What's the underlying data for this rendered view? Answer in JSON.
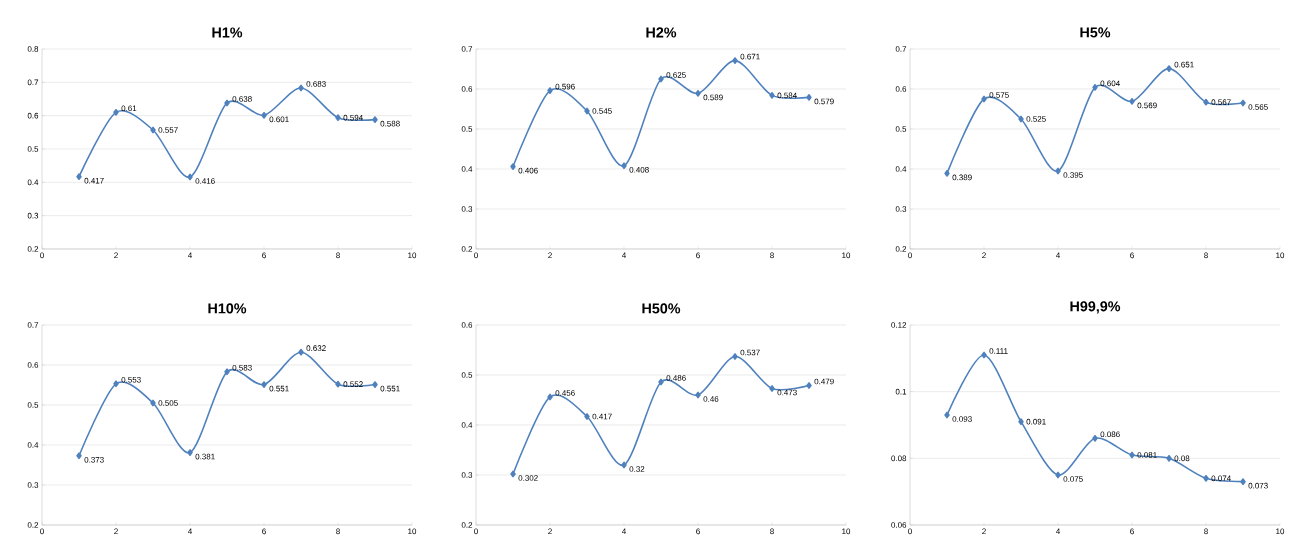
{
  "chart_data": [
    {
      "type": "line",
      "title": "H1%",
      "x": [
        1,
        2,
        3,
        4,
        5,
        6,
        7,
        8,
        9
      ],
      "color": "#4f81bd",
      "marker": "diamond",
      "grid": "y",
      "data_labels": true,
      "xlim": [
        0,
        10
      ],
      "xticks": [
        0,
        2,
        4,
        6,
        8,
        10
      ],
      "ylim": [
        0.2,
        0.8
      ],
      "yticks": [
        0.2,
        0.3,
        0.4,
        0.5,
        0.6,
        0.7,
        0.8
      ],
      "values": [
        0.417,
        0.61,
        0.557,
        0.416,
        0.638,
        0.601,
        0.683,
        0.594,
        0.588
      ]
    },
    {
      "type": "line",
      "title": "H2%",
      "x": [
        1,
        2,
        3,
        4,
        5,
        6,
        7,
        8,
        9
      ],
      "color": "#4f81bd",
      "marker": "diamond",
      "grid": "y",
      "data_labels": true,
      "xlim": [
        0,
        10
      ],
      "xticks": [
        0,
        2,
        4,
        6,
        8,
        10
      ],
      "ylim": [
        0.2,
        0.7
      ],
      "yticks": [
        0.2,
        0.3,
        0.4,
        0.5,
        0.6,
        0.7
      ],
      "values": [
        0.406,
        0.596,
        0.545,
        0.408,
        0.625,
        0.589,
        0.671,
        0.584,
        0.579
      ]
    },
    {
      "type": "line",
      "title": "H5%",
      "x": [
        1,
        2,
        3,
        4,
        5,
        6,
        7,
        8,
        9
      ],
      "color": "#4f81bd",
      "marker": "diamond",
      "grid": "y",
      "data_labels": true,
      "xlim": [
        0,
        10
      ],
      "xticks": [
        0,
        2,
        4,
        6,
        8,
        10
      ],
      "ylim": [
        0.2,
        0.7
      ],
      "yticks": [
        0.2,
        0.3,
        0.4,
        0.5,
        0.6,
        0.7
      ],
      "values": [
        0.389,
        0.575,
        0.525,
        0.395,
        0.604,
        0.569,
        0.651,
        0.567,
        0.565
      ]
    },
    {
      "type": "line",
      "title": "H10%",
      "x": [
        1,
        2,
        3,
        4,
        5,
        6,
        7,
        8,
        9
      ],
      "color": "#4f81bd",
      "marker": "diamond",
      "grid": "y",
      "data_labels": true,
      "xlim": [
        0,
        10
      ],
      "xticks": [
        0,
        2,
        4,
        6,
        8,
        10
      ],
      "ylim": [
        0.2,
        0.7
      ],
      "yticks": [
        0.2,
        0.3,
        0.4,
        0.5,
        0.6,
        0.7
      ],
      "values": [
        0.373,
        0.553,
        0.505,
        0.381,
        0.583,
        0.551,
        0.632,
        0.552,
        0.551
      ]
    },
    {
      "type": "line",
      "title": "H50%",
      "x": [
        1,
        2,
        3,
        4,
        5,
        6,
        7,
        8,
        9
      ],
      "color": "#4f81bd",
      "marker": "diamond",
      "grid": "y",
      "data_labels": true,
      "xlim": [
        0,
        10
      ],
      "xticks": [
        0,
        2,
        4,
        6,
        8,
        10
      ],
      "ylim": [
        0.2,
        0.6
      ],
      "yticks": [
        0.2,
        0.3,
        0.4,
        0.5,
        0.6
      ],
      "values": [
        0.302,
        0.456,
        0.417,
        0.32,
        0.486,
        0.46,
        0.537,
        0.473,
        0.479
      ]
    },
    {
      "type": "line",
      "title": "H99,9%",
      "x": [
        1,
        2,
        3,
        4,
        5,
        6,
        7,
        8,
        9
      ],
      "color": "#4f81bd",
      "marker": "diamond",
      "grid": "y",
      "data_labels": true,
      "xlim": [
        0,
        10
      ],
      "xticks": [
        0,
        2,
        4,
        6,
        8,
        10
      ],
      "ylim": [
        0.06,
        0.12
      ],
      "yticks": [
        0.06,
        0.08,
        0.1,
        0.12
      ],
      "values": [
        0.093,
        0.111,
        0.091,
        0.075,
        0.086,
        0.081,
        0.08,
        0.074,
        0.073
      ]
    }
  ]
}
